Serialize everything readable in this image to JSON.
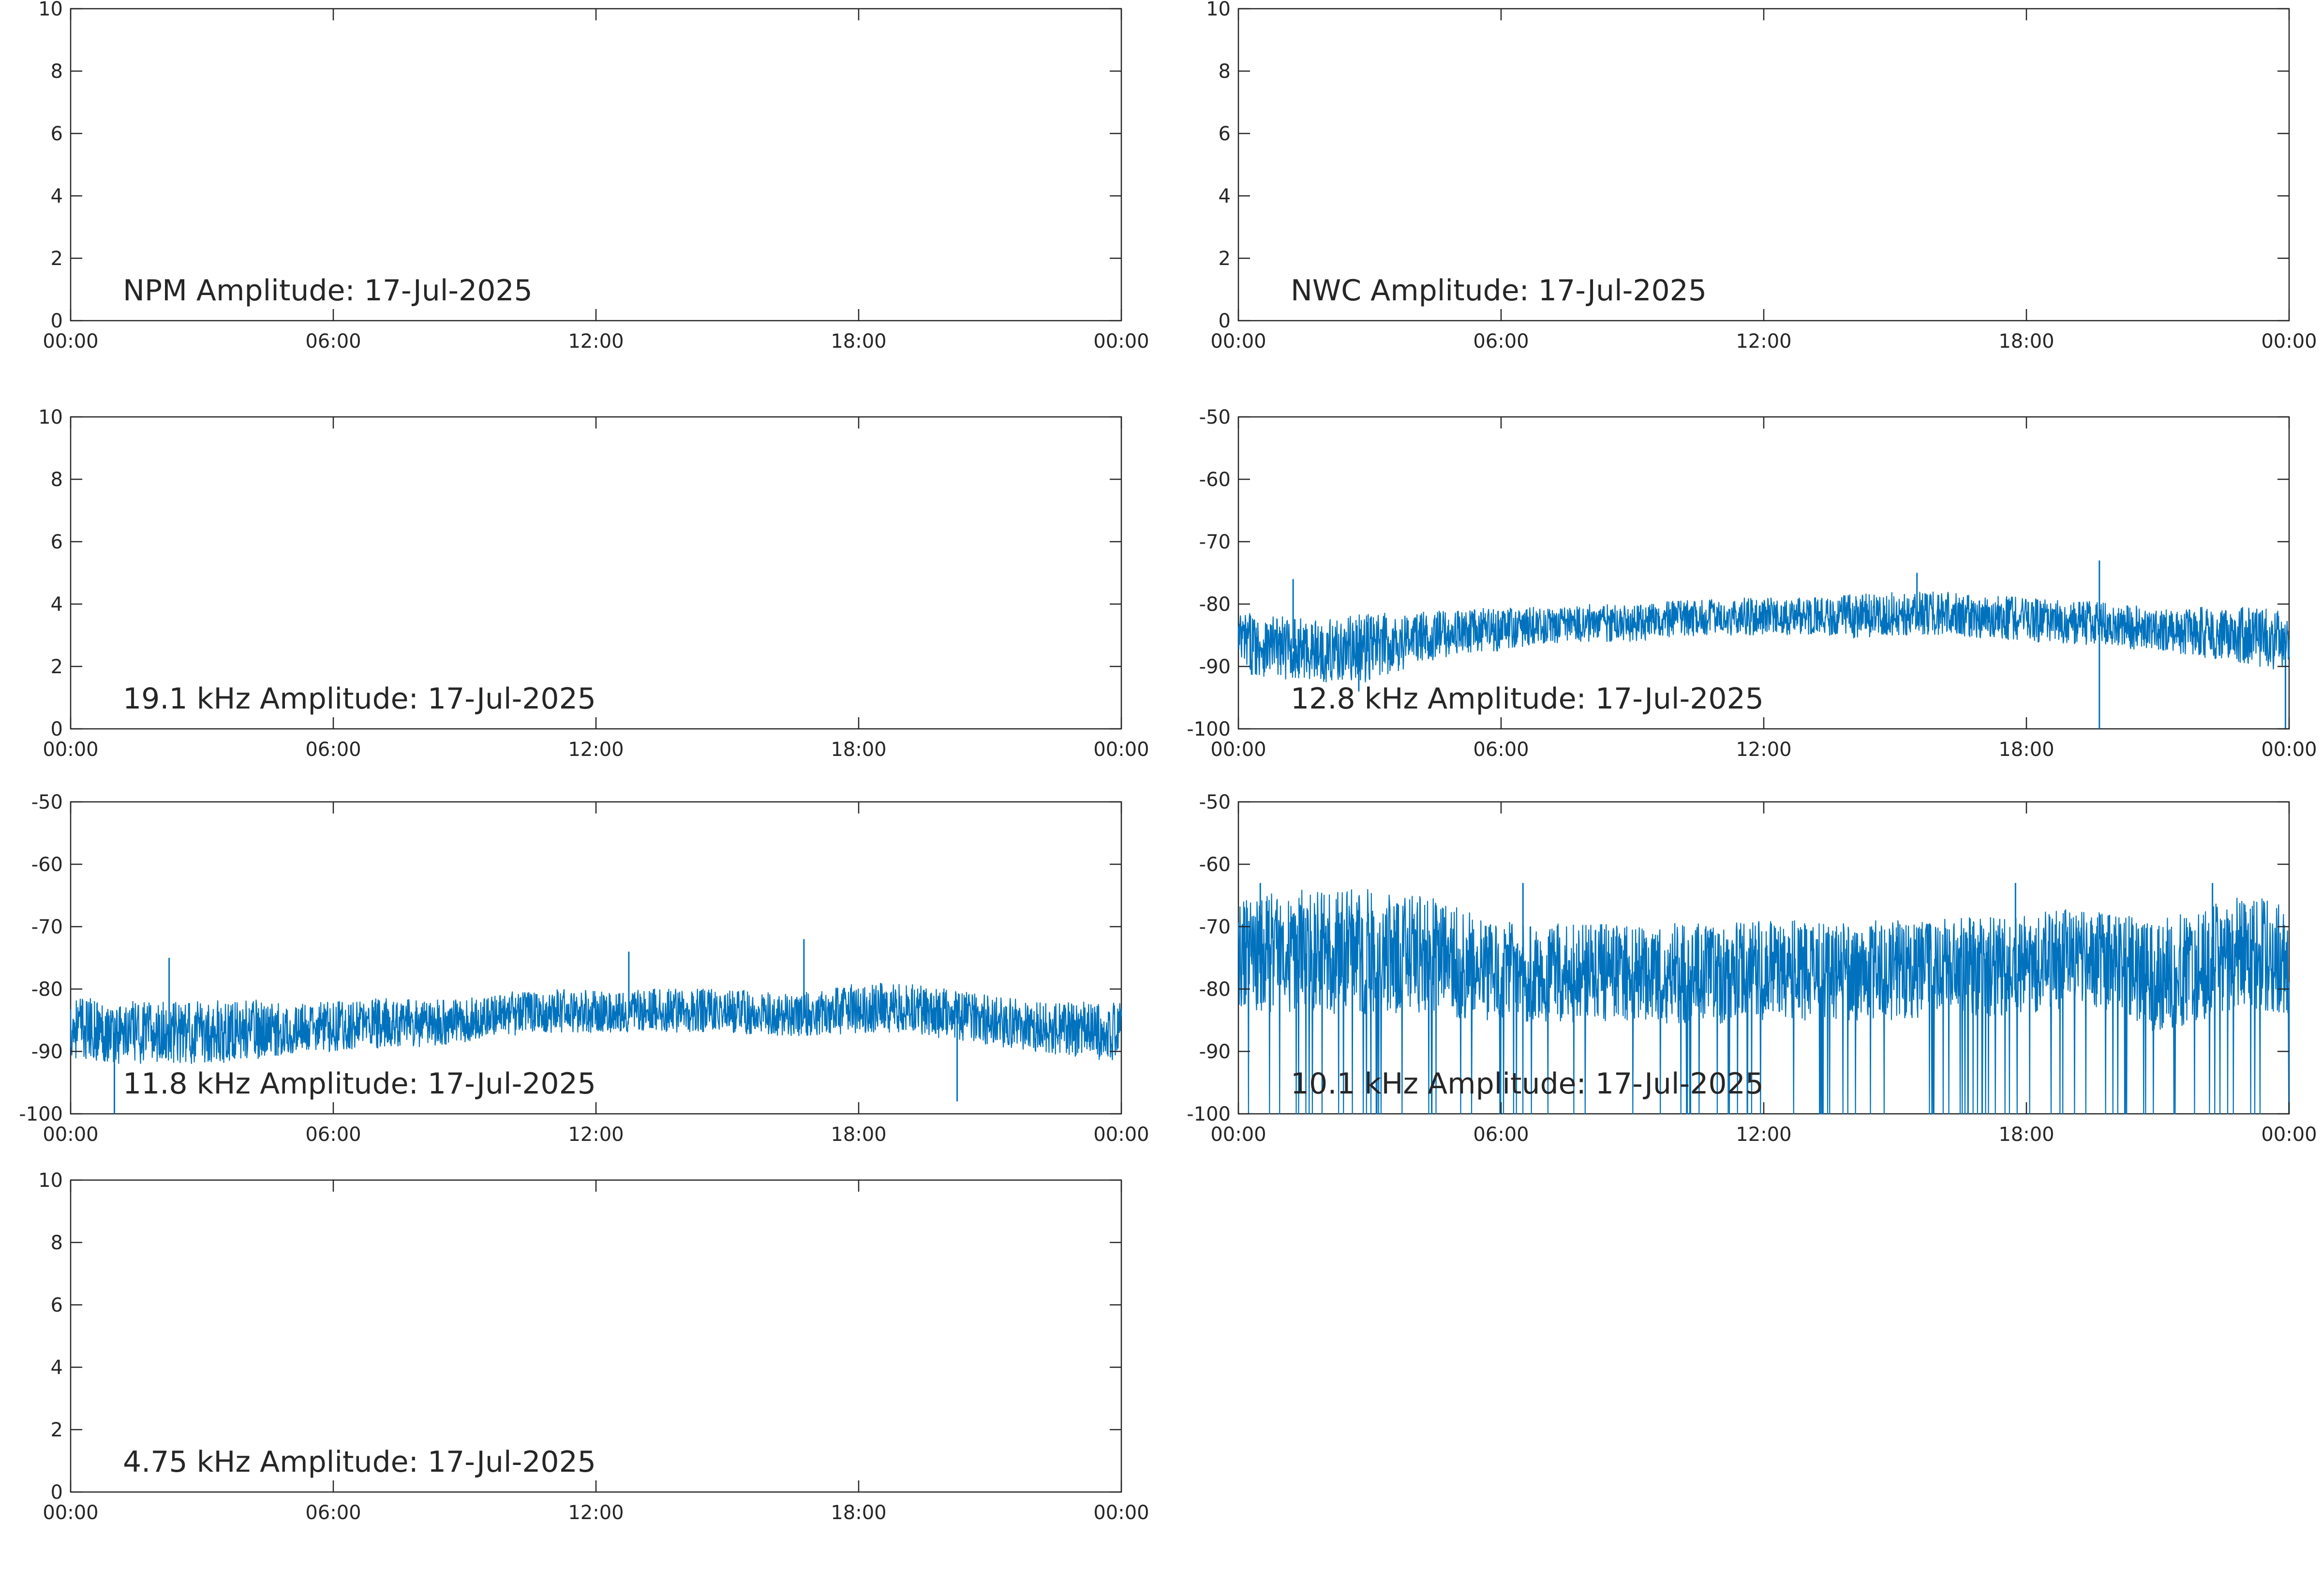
{
  "chart_data": [
    {
      "type": "line",
      "title": "NPM Amplitude: 17-Jul-2025",
      "x_ticks": [
        "00:00",
        "06:00",
        "12:00",
        "18:00",
        "00:00"
      ],
      "xlim": [
        "00:00",
        "24:00"
      ],
      "ylim": [
        0,
        10
      ],
      "y_ticks": [
        "0",
        "2",
        "4",
        "6",
        "8",
        "10"
      ],
      "grid": false,
      "series": []
    },
    {
      "type": "line",
      "title": "NWC Amplitude: 17-Jul-2025",
      "x_ticks": [
        "00:00",
        "06:00",
        "12:00",
        "18:00",
        "00:00"
      ],
      "xlim": [
        "00:00",
        "24:00"
      ],
      "ylim": [
        0,
        10
      ],
      "y_ticks": [
        "0",
        "2",
        "4",
        "6",
        "8",
        "10"
      ],
      "grid": false,
      "series": []
    },
    {
      "type": "line",
      "title": "19.1 kHz Amplitude: 17-Jul-2025",
      "x_ticks": [
        "00:00",
        "06:00",
        "12:00",
        "18:00",
        "00:00"
      ],
      "xlim": [
        "00:00",
        "24:00"
      ],
      "ylim": [
        0,
        10
      ],
      "y_ticks": [
        "0",
        "2",
        "4",
        "6",
        "8",
        "10"
      ],
      "grid": false,
      "series": []
    },
    {
      "type": "line",
      "title": "12.8 kHz Amplitude: 17-Jul-2025",
      "x_ticks": [
        "00:00",
        "06:00",
        "12:00",
        "18:00",
        "00:00"
      ],
      "xlim": [
        "00:00",
        "24:00"
      ],
      "ylim": [
        -100,
        -50
      ],
      "y_ticks": [
        "-100",
        "-90",
        "-80",
        "-70",
        "-60",
        "-50"
      ],
      "grid": false,
      "series": [
        {
          "color": "#0072bd",
          "x": [
            "00:00",
            "01:00",
            "02:00",
            "03:00",
            "04:00",
            "05:00",
            "06:00",
            "07:00",
            "08:00",
            "09:00",
            "10:00",
            "11:00",
            "12:00",
            "13:00",
            "14:00",
            "15:00",
            "16:00",
            "17:00",
            "18:00",
            "19:00",
            "19:40",
            "20:00",
            "21:00",
            "22:00",
            "23:00",
            "24:00"
          ],
          "mean": [
            -86,
            -87,
            -87.5,
            -87,
            -85.5,
            -84.5,
            -84,
            -83.5,
            -83,
            -83,
            -82.5,
            -82,
            -82,
            -82,
            -82,
            -81.5,
            -81.5,
            -82,
            -82.5,
            -83,
            -83,
            -83.5,
            -84,
            -84.5,
            -85,
            -86
          ],
          "spread": [
            5,
            5,
            5,
            5.5,
            4.5,
            3.5,
            3.5,
            3,
            3,
            3,
            3,
            3,
            3,
            3,
            3.5,
            3.5,
            3.5,
            3.5,
            3.5,
            3.5,
            3.5,
            3.5,
            3.5,
            4,
            4.5,
            5
          ],
          "spikes": [
            {
              "x": "01:15",
              "y": -76
            },
            {
              "x": "02:45",
              "y": -94
            },
            {
              "x": "15:30",
              "y": -75
            },
            {
              "x": "19:40",
              "y": -73
            },
            {
              "x": "19:40",
              "y": -100
            },
            {
              "x": "23:55",
              "y": -100
            }
          ]
        }
      ]
    },
    {
      "type": "line",
      "title": "11.8 kHz Amplitude: 17-Jul-2025",
      "x_ticks": [
        "00:00",
        "06:00",
        "12:00",
        "18:00",
        "00:00"
      ],
      "xlim": [
        "00:00",
        "24:00"
      ],
      "ylim": [
        -100,
        -50
      ],
      "y_ticks": [
        "-100",
        "-90",
        "-80",
        "-70",
        "-60",
        "-50"
      ],
      "grid": false,
      "series": [
        {
          "color": "#0072bd",
          "x": [
            "00:00",
            "01:00",
            "02:00",
            "03:00",
            "04:00",
            "05:00",
            "06:00",
            "07:00",
            "08:00",
            "09:00",
            "10:00",
            "11:00",
            "12:00",
            "13:00",
            "14:00",
            "15:00",
            "16:00",
            "17:00",
            "18:00",
            "19:00",
            "20:00",
            "21:00",
            "22:00",
            "23:00",
            "24:00"
          ],
          "mean": [
            -86,
            -87,
            -87,
            -87,
            -86.5,
            -86.5,
            -86,
            -85.5,
            -85.5,
            -85,
            -84,
            -83.5,
            -83.5,
            -83.5,
            -83.5,
            -83.5,
            -84,
            -84,
            -83,
            -83,
            -84,
            -85,
            -86,
            -86.5,
            -87
          ],
          "spread": [
            5,
            5,
            5,
            5,
            5,
            4,
            4,
            4,
            4,
            3.5,
            3.5,
            3.5,
            3.5,
            3.5,
            3.5,
            3.5,
            3.5,
            3.5,
            4,
            4,
            4,
            4,
            4,
            4.5,
            5
          ],
          "spikes": [
            {
              "x": "02:15",
              "y": -75
            },
            {
              "x": "12:45",
              "y": -74
            },
            {
              "x": "16:45",
              "y": -72
            },
            {
              "x": "20:15",
              "y": -98
            },
            {
              "x": "01:00",
              "y": -100
            }
          ]
        }
      ]
    },
    {
      "type": "line",
      "title": "10.1 kHz Amplitude: 17-Jul-2025",
      "x_ticks": [
        "00:00",
        "06:00",
        "12:00",
        "18:00",
        "00:00"
      ],
      "xlim": [
        "00:00",
        "24:00"
      ],
      "ylim": [
        -100,
        -50
      ],
      "y_ticks": [
        "-100",
        "-90",
        "-80",
        "-70",
        "-60",
        "-50"
      ],
      "grid": false,
      "series": [
        {
          "color": "#0072bd",
          "x": [
            "00:00",
            "01:00",
            "02:00",
            "03:00",
            "04:00",
            "05:00",
            "06:00",
            "07:00",
            "08:00",
            "09:00",
            "10:00",
            "11:00",
            "12:00",
            "13:00",
            "14:00",
            "15:00",
            "16:00",
            "17:00",
            "18:00",
            "19:00",
            "20:00",
            "21:00",
            "22:00",
            "23:00",
            "24:00"
          ],
          "mean": [
            -75,
            -74,
            -74,
            -74,
            -74,
            -76,
            -77,
            -77.5,
            -77.5,
            -77.5,
            -77.5,
            -77.5,
            -77,
            -77,
            -77,
            -77,
            -76.5,
            -76.5,
            -76,
            -75,
            -76,
            -78,
            -76,
            -74,
            -75
          ],
          "spread": [
            9,
            10,
            10,
            10,
            10,
            9,
            8,
            8,
            8,
            8,
            8,
            8,
            8,
            8,
            8,
            8,
            8,
            8,
            8,
            8,
            8,
            9,
            9,
            9,
            9
          ],
          "dropouts_to": -100,
          "spikes": [
            {
              "x": "00:30",
              "y": -63
            },
            {
              "x": "06:30",
              "y": -63
            },
            {
              "x": "17:45",
              "y": -63
            },
            {
              "x": "22:15",
              "y": -63
            }
          ]
        }
      ]
    },
    {
      "type": "line",
      "title": "4.75 kHz Amplitude: 17-Jul-2025",
      "x_ticks": [
        "00:00",
        "06:00",
        "12:00",
        "18:00",
        "00:00"
      ],
      "xlim": [
        "00:00",
        "24:00"
      ],
      "ylim": [
        0,
        10
      ],
      "y_ticks": [
        "0",
        "2",
        "4",
        "6",
        "8",
        "10"
      ],
      "grid": false,
      "series": []
    }
  ]
}
